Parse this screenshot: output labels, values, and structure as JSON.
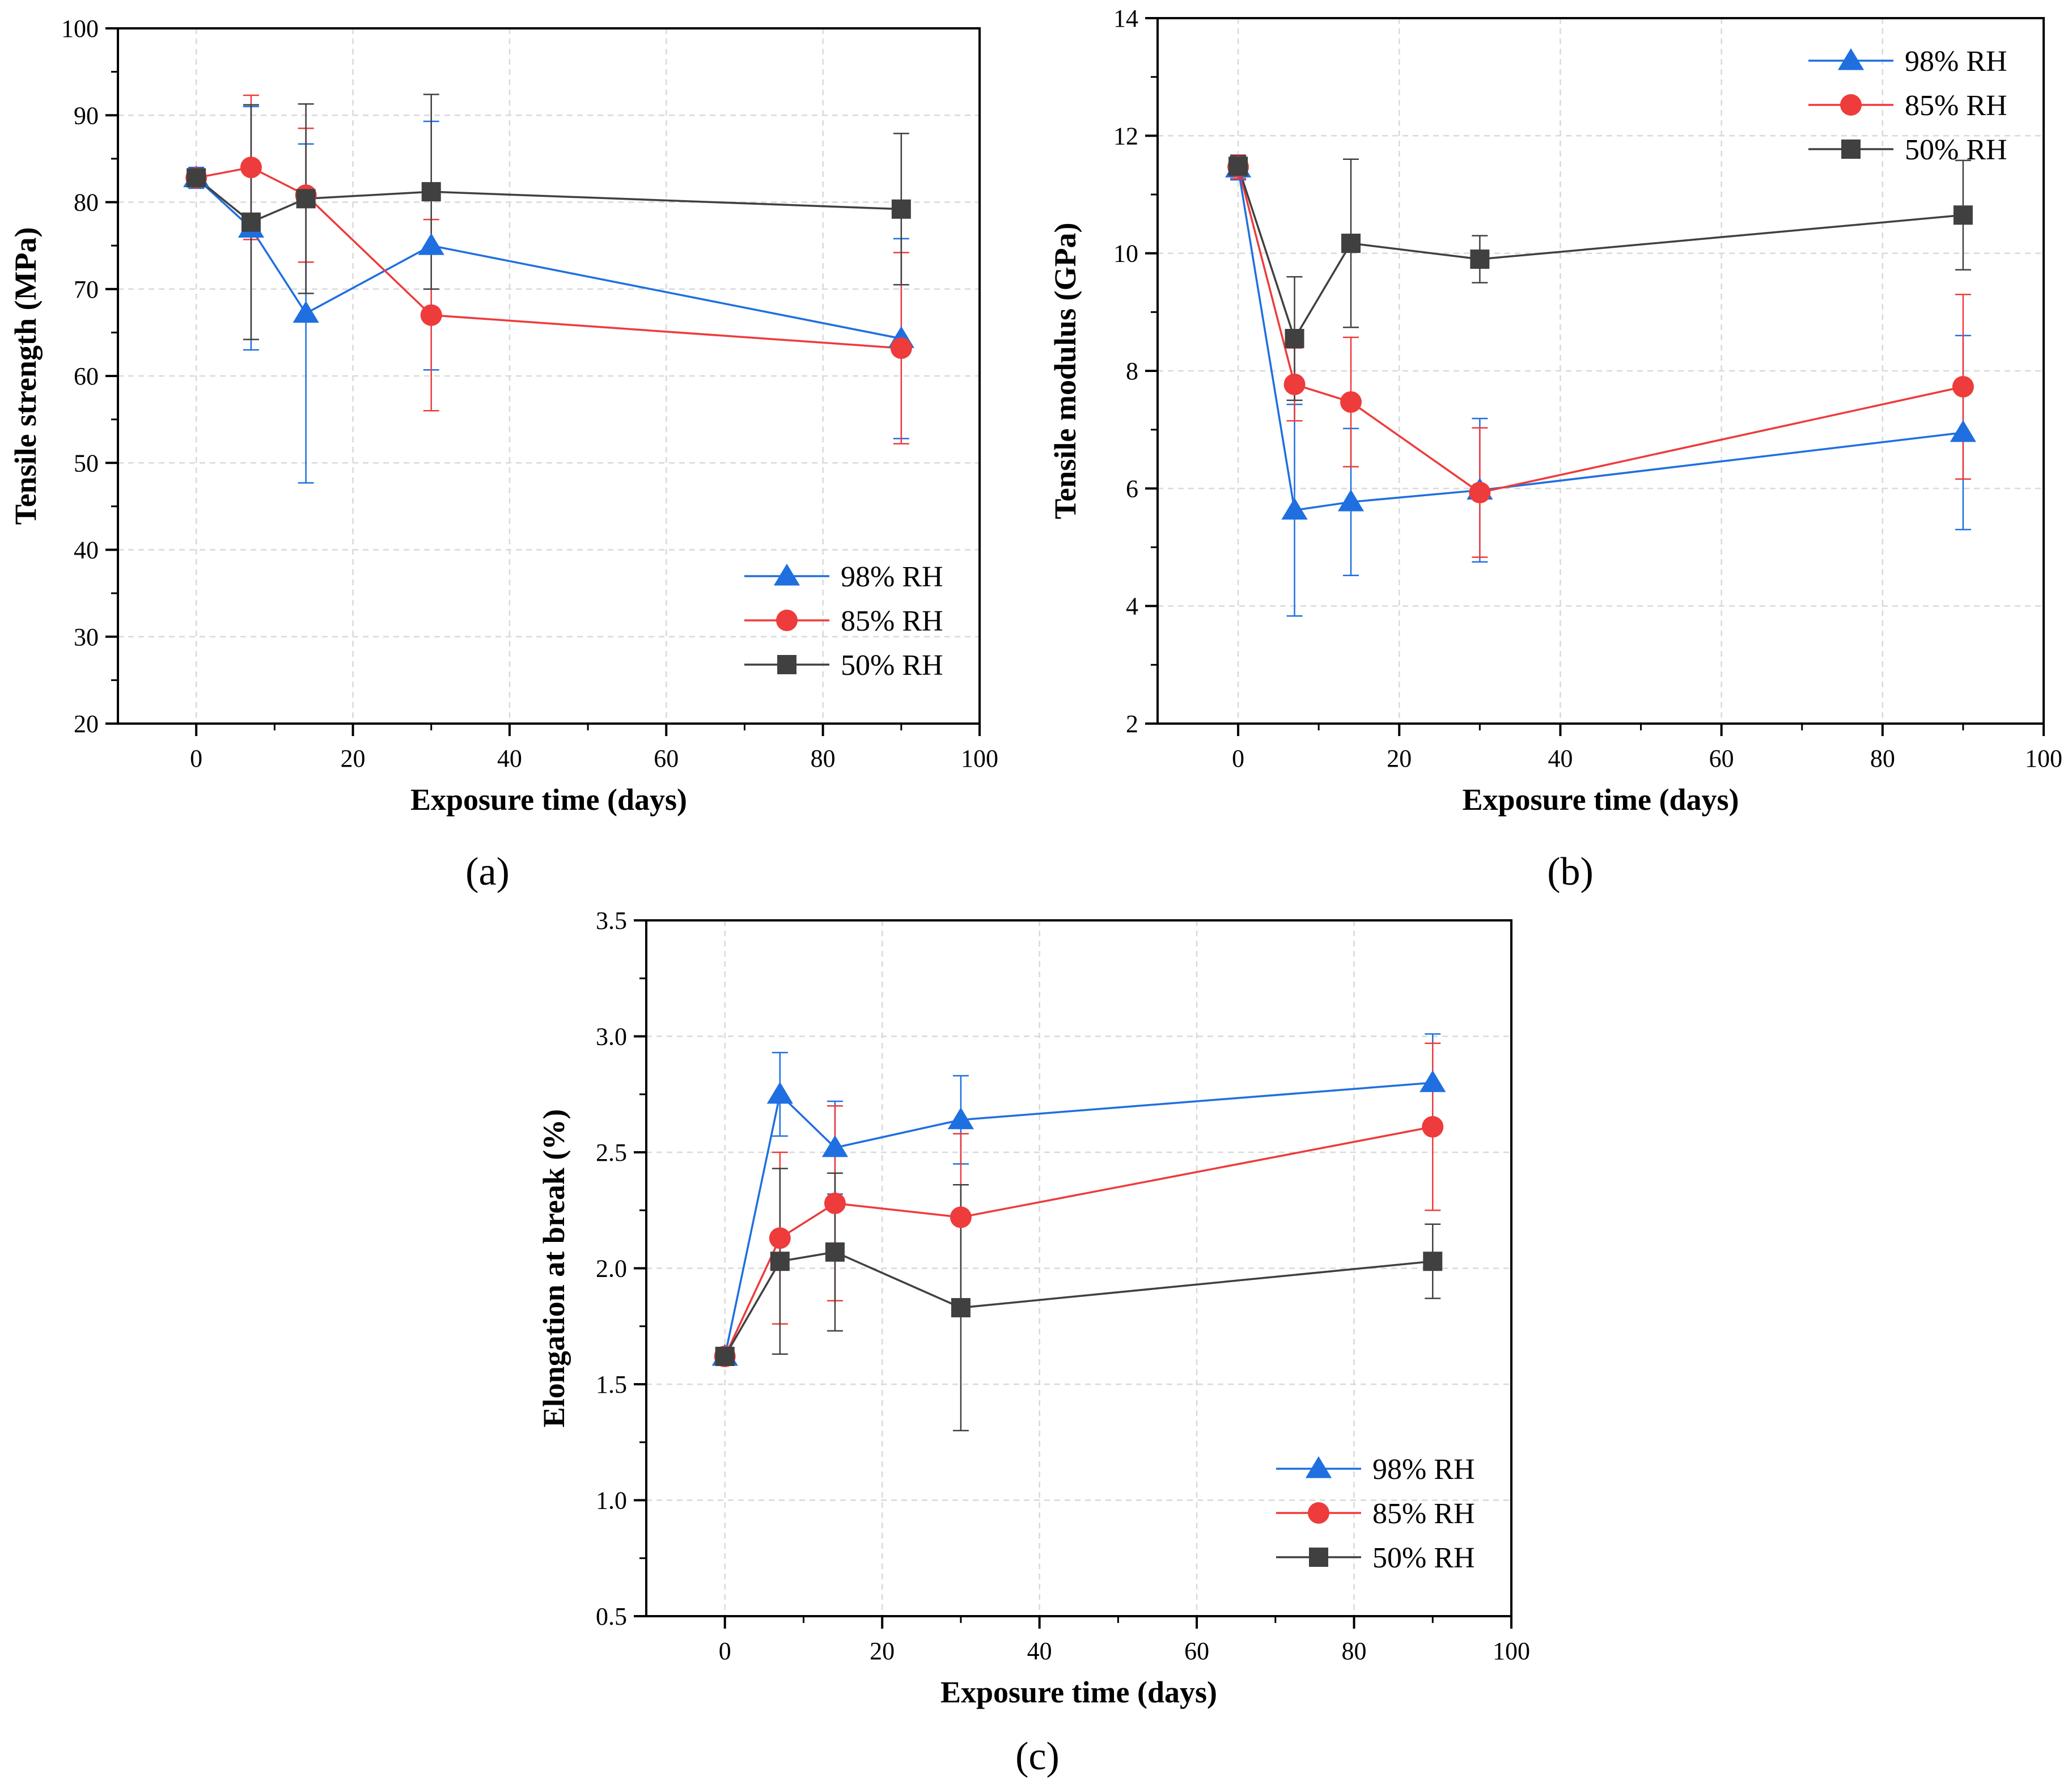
{
  "colors": {
    "s98": "#1f6fe0",
    "s85": "#ee3b3b",
    "s50": "#404040",
    "grid": "#d9d9d9",
    "axis": "#000000"
  },
  "chart_data": [
    {
      "type": "line",
      "panel": "a",
      "panel_label": "(a)",
      "title": "",
      "xlabel": "Exposure time (days)",
      "ylabel": "Tensile strength (MPa)",
      "xlim": [
        -10,
        100
      ],
      "ylim": [
        20,
        100
      ],
      "xticks": [
        0,
        20,
        40,
        60,
        80,
        100
      ],
      "yticks": [
        20,
        30,
        40,
        50,
        60,
        70,
        80,
        90,
        100
      ],
      "ytick_decimals": 0,
      "grid": true,
      "legend_position": "bottom-right",
      "series": [
        {
          "name": "98% RH",
          "marker": "triangle",
          "x": [
            0,
            7,
            14,
            30,
            90
          ],
          "y": [
            82.8,
            77.0,
            67.2,
            75.0,
            64.3
          ],
          "err": [
            1.2,
            14.0,
            19.5,
            14.3,
            11.5
          ]
        },
        {
          "name": "85% RH",
          "marker": "circle",
          "x": [
            0,
            7,
            14,
            30,
            90
          ],
          "y": [
            82.8,
            84.0,
            80.8,
            67.0,
            63.2
          ],
          "err": [
            1.0,
            8.3,
            7.7,
            11.0,
            11.0
          ]
        },
        {
          "name": "50% RH",
          "marker": "square",
          "x": [
            0,
            7,
            14,
            30,
            90
          ],
          "y": [
            82.8,
            77.7,
            80.4,
            81.2,
            79.2
          ],
          "err": [
            1.0,
            13.5,
            10.9,
            11.2,
            8.7
          ]
        }
      ]
    },
    {
      "type": "line",
      "panel": "b",
      "panel_label": "(b)",
      "title": "",
      "xlabel": "Exposure time (days)",
      "ylabel": "Tensile modulus (GPa)",
      "xlim": [
        -10,
        100
      ],
      "ylim": [
        2,
        14
      ],
      "xticks": [
        0,
        20,
        40,
        60,
        80,
        100
      ],
      "yticks": [
        2,
        4,
        6,
        8,
        10,
        12,
        14
      ],
      "ytick_decimals": 0,
      "grid": true,
      "legend_position": "top-right",
      "series": [
        {
          "name": "98% RH",
          "marker": "triangle",
          "x": [
            0,
            7,
            14,
            30,
            90
          ],
          "y": [
            11.45,
            5.63,
            5.77,
            5.97,
            6.95
          ],
          "err": [
            0.2,
            1.8,
            1.25,
            1.22,
            1.65
          ]
        },
        {
          "name": "85% RH",
          "marker": "circle",
          "x": [
            0,
            7,
            14,
            30,
            90
          ],
          "y": [
            11.47,
            7.77,
            7.47,
            5.93,
            7.73
          ],
          "err": [
            0.2,
            0.62,
            1.1,
            1.1,
            1.57
          ]
        },
        {
          "name": "50% RH",
          "marker": "square",
          "x": [
            0,
            7,
            14,
            30,
            90
          ],
          "y": [
            11.48,
            8.55,
            10.17,
            9.9,
            10.65
          ],
          "err": [
            0.18,
            1.05,
            1.43,
            0.4,
            0.93
          ]
        }
      ]
    },
    {
      "type": "line",
      "panel": "c",
      "panel_label": "(c)",
      "title": "",
      "xlabel": "Exposure time (days)",
      "ylabel": "Elongation at break (%)",
      "xlim": [
        -10,
        100
      ],
      "ylim": [
        0.5,
        3.5
      ],
      "xticks": [
        0,
        20,
        40,
        60,
        80,
        100
      ],
      "yticks": [
        0.5,
        1.0,
        1.5,
        2.0,
        2.5,
        3.0,
        3.5
      ],
      "ytick_decimals": 1,
      "grid": true,
      "legend_position": "bottom-right",
      "series": [
        {
          "name": "98% RH",
          "marker": "triangle",
          "x": [
            0,
            7,
            14,
            30,
            90
          ],
          "y": [
            1.62,
            2.75,
            2.52,
            2.64,
            2.8
          ],
          "err": [
            0.03,
            0.18,
            0.2,
            0.19,
            0.21
          ]
        },
        {
          "name": "85% RH",
          "marker": "circle",
          "x": [
            0,
            7,
            14,
            30,
            90
          ],
          "y": [
            1.62,
            2.13,
            2.28,
            2.22,
            2.61
          ],
          "err": [
            0.03,
            0.37,
            0.42,
            0.36,
            0.36
          ]
        },
        {
          "name": "50% RH",
          "marker": "square",
          "x": [
            0,
            7,
            14,
            30,
            90
          ],
          "y": [
            1.62,
            2.03,
            2.07,
            1.83,
            2.03
          ],
          "err": [
            0.03,
            0.4,
            0.34,
            0.53,
            0.16
          ]
        }
      ]
    }
  ]
}
